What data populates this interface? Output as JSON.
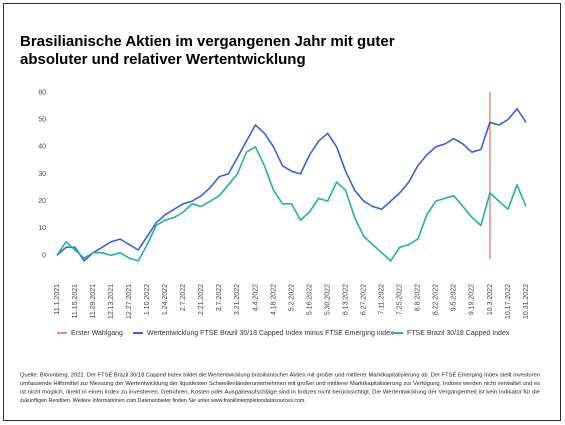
{
  "chart_data": {
    "type": "line",
    "title_lines": [
      "Brasilianische Aktien im vergangenen Jahr mit guter",
      "absoluter und relativer Wertentwicklung"
    ],
    "categories": [
      "11.1.2021",
      null,
      "11.15.2021",
      null,
      "11.29.2021",
      null,
      "12.13.2021",
      null,
      "12.27.2021",
      null,
      "1.10.2022",
      null,
      "1.24.2022",
      null,
      "2.7.2022",
      null,
      "2.21.2022",
      null,
      "3.7.2022",
      null,
      "3.21.2022",
      null,
      "4.4.2022",
      null,
      "4.18.2022",
      null,
      "5.2.2022",
      null,
      "5.16.2022",
      null,
      "5.30.2022",
      null,
      "6.13.2022",
      null,
      "6.27.2022",
      null,
      "7.11.2022",
      null,
      "7.25.2022",
      null,
      "8.8.2022",
      null,
      "8.22.2022",
      null,
      "9.5.2022",
      null,
      "9.19.2022",
      null,
      "10.3.2022",
      null,
      "10.17.2022",
      null,
      "10.31.2022"
    ],
    "series": [
      {
        "name": "Wertentwicklung FTSE Brazil 30/18 Capped Index minus FTSE Emerging index",
        "color": "#3d5fd8",
        "values": [
          0,
          3,
          3,
          -2,
          1,
          3,
          5,
          6,
          4,
          2,
          7,
          12,
          15,
          17,
          19,
          20,
          22,
          25,
          29,
          30,
          36,
          42,
          48,
          45,
          40,
          33,
          31,
          30,
          37,
          42,
          45,
          40,
          31,
          24,
          20,
          18,
          17,
          20,
          23,
          27,
          33,
          37,
          40,
          41,
          43,
          41,
          38,
          39,
          49,
          48,
          50,
          54,
          49
        ]
      },
      {
        "name": "FTSE Brazil 30/18 Capped Index",
        "color": "#1fb3a3",
        "values": [
          0,
          5,
          2,
          -1,
          1,
          1,
          0,
          1,
          -1,
          -2,
          4,
          11,
          13,
          14,
          16,
          19,
          18,
          20,
          22,
          26,
          30,
          38,
          40,
          33,
          24,
          19,
          19,
          13,
          16,
          21,
          20,
          27,
          24,
          14,
          7,
          4,
          1,
          -2,
          3,
          4,
          6,
          15,
          20,
          21,
          22,
          18,
          14,
          11,
          23,
          20,
          17,
          26,
          18
        ]
      }
    ],
    "vline": {
      "name": "Erster Wahlgang",
      "color": "#f0877a",
      "category_index": 48
    },
    "ylim": [
      -5,
      62
    ],
    "yticks": [
      60,
      50,
      40,
      30,
      20,
      10,
      0
    ],
    "grid": false,
    "footnote_lines": [
      "Quelle: Bloomberg, 2022. Der FTSE Brazil 30/18 Capped Index bildet die Wertentwicklung brasilianischer Aktien mit großer und mittlerer Marktkapitalisierung ab. Der FTSE Emerging Index stellt Investoren",
      "umfassende Hilfsmittel zur Messung der Wertentwicklung der liquidesten Schwellenländerunternehmen mit großer und mittlerer Marktkapitalisierung zur Verfügung. Indizes werden nicht verwaltet und es",
      "ist nicht möglich, direkt in einen Index zu investieren. Gebühren, Kosten oder Ausgabeaufschläge sind in Indizes nicht berücksichtigt. Die Wertentwicklung der Vergangenheit ist kein Indikator für die",
      "zukünftigen Renditen. Weitere Informationen zum Datenanbieter finden Sie unter www.franklintempletondatasources.com."
    ]
  }
}
